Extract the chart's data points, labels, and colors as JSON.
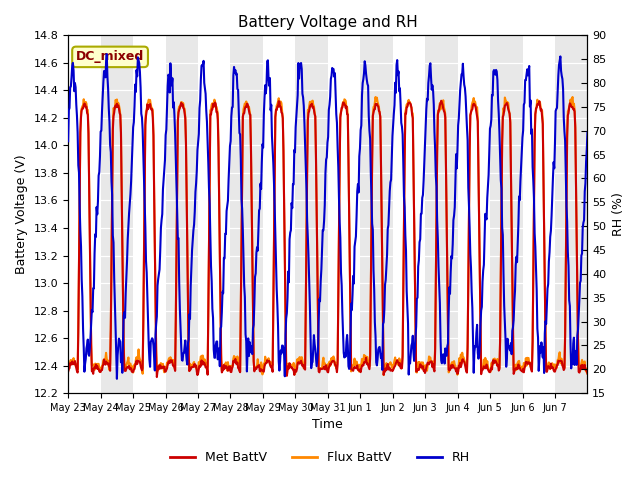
{
  "title": "Battery Voltage and RH",
  "xlabel": "Time",
  "ylabel_left": "Battery Voltage (V)",
  "ylabel_right": "RH (%)",
  "annotation_text": "DC_mixed",
  "annotation_bg": "#ffffcc",
  "annotation_border": "#aaaa00",
  "annotation_fg": "#8b0000",
  "ylim_left": [
    12.2,
    14.8
  ],
  "ylim_right": [
    15,
    90
  ],
  "yticks_left": [
    12.2,
    12.4,
    12.6,
    12.8,
    13.0,
    13.2,
    13.4,
    13.6,
    13.8,
    14.0,
    14.2,
    14.4,
    14.6,
    14.8
  ],
  "yticks_right": [
    15,
    20,
    25,
    30,
    35,
    40,
    45,
    50,
    55,
    60,
    65,
    70,
    75,
    80,
    85,
    90
  ],
  "xtick_labels": [
    "May 23",
    "May 24",
    "May 25",
    "May 26",
    "May 27",
    "May 28",
    "May 29",
    "May 30",
    "May 31",
    "Jun 1",
    "Jun 2",
    "Jun 3",
    "Jun 4",
    "Jun 5",
    "Jun 6",
    "Jun 7"
  ],
  "color_met": "#cc0000",
  "color_flux": "#ff8800",
  "color_rh": "#0000cc",
  "legend_labels": [
    "Met BattV",
    "Flux BattV",
    "RH"
  ],
  "line_width": 1.5
}
